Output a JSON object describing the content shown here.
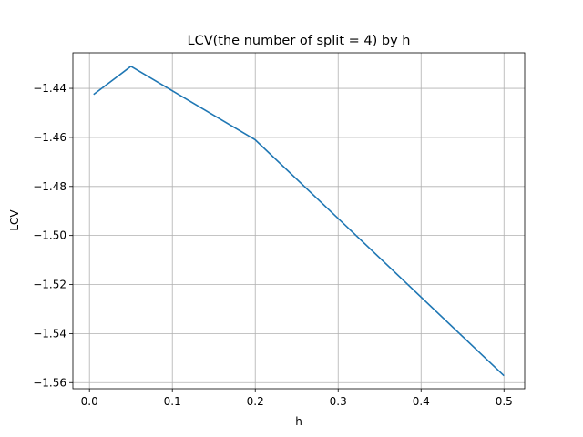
{
  "chart_data": {
    "type": "line",
    "title": "LCV(the number of split = 4) by h",
    "xlabel": "h",
    "ylabel": "LCV",
    "xlim": [
      -0.02,
      0.525
    ],
    "ylim": [
      -1.5625,
      -1.4255
    ],
    "xticks": [
      0.0,
      0.1,
      0.2,
      0.3,
      0.4,
      0.5
    ],
    "xtick_labels": [
      "0.0",
      "0.1",
      "0.2",
      "0.3",
      "0.4",
      "0.5"
    ],
    "yticks": [
      -1.44,
      -1.46,
      -1.48,
      -1.5,
      -1.52,
      -1.54,
      -1.56
    ],
    "ytick_labels": [
      "−1.44",
      "−1.46",
      "−1.48",
      "−1.50",
      "−1.52",
      "−1.54",
      "−1.56"
    ],
    "grid": true,
    "series": [
      {
        "color": "#1f77b4",
        "x": [
          0.005,
          0.05,
          0.2,
          0.5
        ],
        "y": [
          -1.4425,
          -1.431,
          -1.461,
          -1.5572
        ]
      }
    ]
  }
}
